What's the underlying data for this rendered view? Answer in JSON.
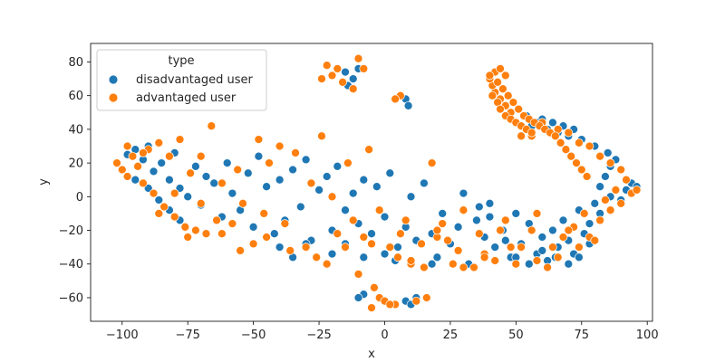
{
  "chart_data": {
    "type": "scatter",
    "xlabel": "x",
    "ylabel": "y",
    "xlim": [
      -112,
      102
    ],
    "ylim": [
      -74,
      91
    ],
    "xticks": [
      -100,
      -75,
      -50,
      -25,
      0,
      25,
      50,
      75,
      100
    ],
    "yticks": [
      -60,
      -40,
      -20,
      0,
      20,
      40,
      60,
      80
    ],
    "grid": false,
    "legend": {
      "title": "type",
      "placement": "top-left"
    },
    "series": [
      {
        "name": "disadvantaged user",
        "color": "#1f77b4",
        "points": [
          [
            -98,
            25
          ],
          [
            -95,
            28
          ],
          [
            -92,
            22
          ],
          [
            -90,
            30
          ],
          [
            -88,
            15
          ],
          [
            -85,
            20
          ],
          [
            -82,
            10
          ],
          [
            -80,
            26
          ],
          [
            -78,
            5
          ],
          [
            -75,
            0
          ],
          [
            -72,
            18
          ],
          [
            -70,
            -5
          ],
          [
            -68,
            12
          ],
          [
            -65,
            8
          ],
          [
            -62,
            -12
          ],
          [
            -60,
            20
          ],
          [
            -58,
            2
          ],
          [
            -55,
            -8
          ],
          [
            -52,
            14
          ],
          [
            -50,
            -18
          ],
          [
            -48,
            24
          ],
          [
            -45,
            6
          ],
          [
            -42,
            -22
          ],
          [
            -40,
            10
          ],
          [
            -38,
            -14
          ],
          [
            -35,
            16
          ],
          [
            -32,
            -6
          ],
          [
            -30,
            22
          ],
          [
            -28,
            -26
          ],
          [
            -25,
            4
          ],
          [
            -22,
            12
          ],
          [
            -20,
            -20
          ],
          [
            -18,
            18
          ],
          [
            -15,
            -8
          ],
          [
            -12,
            2
          ],
          [
            -10,
            -16
          ],
          [
            -8,
            10
          ],
          [
            -5,
            -22
          ],
          [
            -3,
            6
          ],
          [
            0,
            -12
          ],
          [
            2,
            14
          ],
          [
            5,
            -30
          ],
          [
            8,
            -18
          ],
          [
            10,
            0
          ],
          [
            12,
            -26
          ],
          [
            15,
            8
          ],
          [
            18,
            -22
          ],
          [
            20,
            -36
          ],
          [
            22,
            -10
          ],
          [
            25,
            -28
          ],
          [
            28,
            -18
          ],
          [
            30,
            2
          ],
          [
            32,
            -40
          ],
          [
            35,
            -14
          ],
          [
            38,
            -24
          ],
          [
            40,
            -4
          ],
          [
            42,
            -30
          ],
          [
            45,
            -20
          ],
          [
            48,
            -36
          ],
          [
            50,
            -10
          ],
          [
            52,
            -28
          ],
          [
            55,
            -16
          ],
          [
            58,
            -34
          ],
          [
            60,
            -24
          ],
          [
            62,
            -38
          ],
          [
            64,
            -20
          ],
          [
            66,
            -30
          ],
          [
            68,
            -14
          ],
          [
            70,
            -26
          ],
          [
            72,
            -34
          ],
          [
            74,
            -8
          ],
          [
            76,
            -22
          ],
          [
            78,
            -16
          ],
          [
            80,
            -4
          ],
          [
            82,
            6
          ],
          [
            84,
            12
          ],
          [
            86,
            18
          ],
          [
            88,
            22
          ],
          [
            90,
            -2
          ],
          [
            92,
            4
          ],
          [
            94,
            8
          ],
          [
            96,
            6
          ],
          [
            85,
            26
          ],
          [
            80,
            30
          ],
          [
            75,
            34
          ],
          [
            72,
            40
          ],
          [
            70,
            36
          ],
          [
            68,
            42
          ],
          [
            66,
            38
          ],
          [
            64,
            44
          ],
          [
            62,
            40
          ],
          [
            60,
            46
          ],
          [
            58,
            44
          ],
          [
            56,
            42
          ],
          [
            54,
            48
          ],
          [
            86,
            0
          ],
          [
            82,
            -10
          ],
          [
            78,
            -28
          ],
          [
            74,
            -36
          ],
          [
            70,
            -40
          ],
          [
            65,
            -36
          ],
          [
            60,
            -32
          ],
          [
            55,
            -40
          ],
          [
            50,
            -36
          ],
          [
            46,
            -26
          ],
          [
            40,
            -12
          ],
          [
            36,
            -6
          ],
          [
            -5,
            -66
          ],
          [
            -8,
            -58
          ],
          [
            -10,
            -60
          ],
          [
            8,
            -62
          ],
          [
            10,
            -64
          ],
          [
            12,
            -60
          ],
          [
            -15,
            74
          ],
          [
            -12,
            70
          ],
          [
            -10,
            76
          ],
          [
            -14,
            66
          ],
          [
            8,
            58
          ],
          [
            9,
            54
          ],
          [
            -95,
            10
          ],
          [
            -90,
            5
          ],
          [
            -86,
            -2
          ],
          [
            -82,
            -8
          ],
          [
            -78,
            -14
          ],
          [
            -40,
            -30
          ],
          [
            -35,
            -36
          ],
          [
            -30,
            -28
          ],
          [
            -20,
            -34
          ],
          [
            -15,
            -28
          ],
          [
            -8,
            -36
          ],
          [
            0,
            -34
          ],
          [
            4,
            -38
          ],
          [
            18,
            -40
          ]
        ]
      },
      {
        "name": "advantaged user",
        "color": "#ff7f0e",
        "points": [
          [
            -102,
            20
          ],
          [
            -100,
            16
          ],
          [
            -98,
            12
          ],
          [
            -96,
            24
          ],
          [
            -94,
            18
          ],
          [
            -92,
            8
          ],
          [
            -90,
            28
          ],
          [
            -88,
            2
          ],
          [
            -86,
            32
          ],
          [
            -84,
            -6
          ],
          [
            -82,
            24
          ],
          [
            -80,
            -12
          ],
          [
            -78,
            34
          ],
          [
            -76,
            -18
          ],
          [
            -74,
            14
          ],
          [
            -72,
            -20
          ],
          [
            -70,
            24
          ],
          [
            -68,
            -22
          ],
          [
            -66,
            42
          ],
          [
            -64,
            -14
          ],
          [
            -62,
            8
          ],
          [
            -58,
            -16
          ],
          [
            -56,
            16
          ],
          [
            -54,
            -4
          ],
          [
            -50,
            -28
          ],
          [
            -48,
            34
          ],
          [
            -46,
            -10
          ],
          [
            -44,
            20
          ],
          [
            -40,
            30
          ],
          [
            -36,
            -32
          ],
          [
            -34,
            26
          ],
          [
            -30,
            -30
          ],
          [
            -28,
            8
          ],
          [
            -24,
            36
          ],
          [
            -22,
            -40
          ],
          [
            -20,
            0
          ],
          [
            -18,
            -22
          ],
          [
            -14,
            20
          ],
          [
            -12,
            -14
          ],
          [
            -10,
            -46
          ],
          [
            -8,
            -24
          ],
          [
            -6,
            28
          ],
          [
            -4,
            -54
          ],
          [
            -2,
            -8
          ],
          [
            2,
            -30
          ],
          [
            4,
            -64
          ],
          [
            6,
            -22
          ],
          [
            8,
            -14
          ],
          [
            10,
            -40
          ],
          [
            14,
            -28
          ],
          [
            16,
            -60
          ],
          [
            18,
            20
          ],
          [
            20,
            -24
          ],
          [
            22,
            -16
          ],
          [
            26,
            -40
          ],
          [
            28,
            -32
          ],
          [
            30,
            -8
          ],
          [
            34,
            -42
          ],
          [
            36,
            -22
          ],
          [
            38,
            -34
          ],
          [
            42,
            -38
          ],
          [
            44,
            -20
          ],
          [
            46,
            -14
          ],
          [
            50,
            -40
          ],
          [
            52,
            -30
          ],
          [
            56,
            -20
          ],
          [
            58,
            -10
          ],
          [
            62,
            -42
          ],
          [
            66,
            -36
          ],
          [
            68,
            -24
          ],
          [
            72,
            -18
          ],
          [
            74,
            -30
          ],
          [
            76,
            -10
          ],
          [
            78,
            -24
          ],
          [
            80,
            -26
          ],
          [
            82,
            -14
          ],
          [
            84,
            -2
          ],
          [
            86,
            -8
          ],
          [
            88,
            4
          ],
          [
            90,
            -4
          ],
          [
            92,
            10
          ],
          [
            94,
            2
          ],
          [
            96,
            4
          ],
          [
            90,
            16
          ],
          [
            86,
            20
          ],
          [
            82,
            24
          ],
          [
            78,
            30
          ],
          [
            74,
            32
          ],
          [
            70,
            38
          ],
          [
            66,
            40
          ],
          [
            60,
            44
          ],
          [
            56,
            36
          ],
          [
            52,
            36
          ],
          [
            48,
            50
          ],
          [
            46,
            54
          ],
          [
            44,
            58
          ],
          [
            42,
            62
          ],
          [
            41,
            66
          ],
          [
            40,
            70
          ],
          [
            42,
            74
          ],
          [
            44,
            76
          ],
          [
            46,
            72
          ],
          [
            43,
            68
          ],
          [
            45,
            64
          ],
          [
            47,
            60
          ],
          [
            49,
            56
          ],
          [
            51,
            52
          ],
          [
            53,
            48
          ],
          [
            55,
            46
          ],
          [
            57,
            44
          ],
          [
            59,
            42
          ],
          [
            61,
            40
          ],
          [
            63,
            38
          ],
          [
            65,
            36
          ],
          [
            67,
            32
          ],
          [
            69,
            28
          ],
          [
            71,
            24
          ],
          [
            73,
            20
          ],
          [
            75,
            16
          ],
          [
            77,
            12
          ],
          [
            40,
            72
          ],
          [
            41,
            60
          ],
          [
            43,
            56
          ],
          [
            44,
            52
          ],
          [
            46,
            48
          ],
          [
            48,
            46
          ],
          [
            50,
            44
          ],
          [
            52,
            42
          ],
          [
            54,
            40
          ],
          [
            56,
            38
          ],
          [
            -22,
            78
          ],
          [
            -20,
            72
          ],
          [
            -18,
            76
          ],
          [
            -24,
            70
          ],
          [
            -16,
            68
          ],
          [
            -10,
            82
          ],
          [
            -8,
            76
          ],
          [
            -12,
            64
          ],
          [
            6,
            60
          ],
          [
            4,
            58
          ],
          [
            -5,
            -66
          ],
          [
            -2,
            -60
          ],
          [
            0,
            -62
          ],
          [
            2,
            -64
          ],
          [
            12,
            -62
          ],
          [
            16,
            -60
          ],
          [
            -98,
            30
          ],
          [
            -92,
            26
          ],
          [
            -86,
            -10
          ],
          [
            -80,
            2
          ],
          [
            -75,
            -24
          ],
          [
            -70,
            -4
          ],
          [
            -62,
            -22
          ],
          [
            -55,
            -32
          ],
          [
            -45,
            -24
          ],
          [
            -38,
            -16
          ],
          [
            -26,
            -36
          ],
          [
            -15,
            -30
          ],
          [
            -5,
            -28
          ],
          [
            5,
            -36
          ],
          [
            10,
            -38
          ],
          [
            15,
            -42
          ],
          [
            20,
            -20
          ],
          [
            24,
            -26
          ],
          [
            30,
            -42
          ],
          [
            38,
            -36
          ],
          [
            48,
            -30
          ],
          [
            58,
            -38
          ],
          [
            64,
            -30
          ],
          [
            70,
            -20
          ]
        ]
      }
    ]
  }
}
